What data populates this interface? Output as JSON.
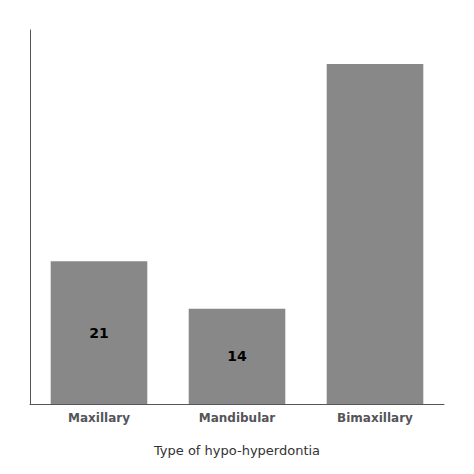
{
  "chart_data": {
    "type": "bar",
    "categories": [
      "Maxillary",
      "Mandibular",
      "Bimaxillary"
    ],
    "values": [
      21,
      14,
      50
    ],
    "value_labels": [
      "21",
      "14",
      null
    ],
    "data_labels": true,
    "color": "#888888",
    "xlabel": "Type of hypo-hyperdontia",
    "ylim": [
      0,
      55
    ],
    "tick_labels": "x",
    "grid": false
  }
}
